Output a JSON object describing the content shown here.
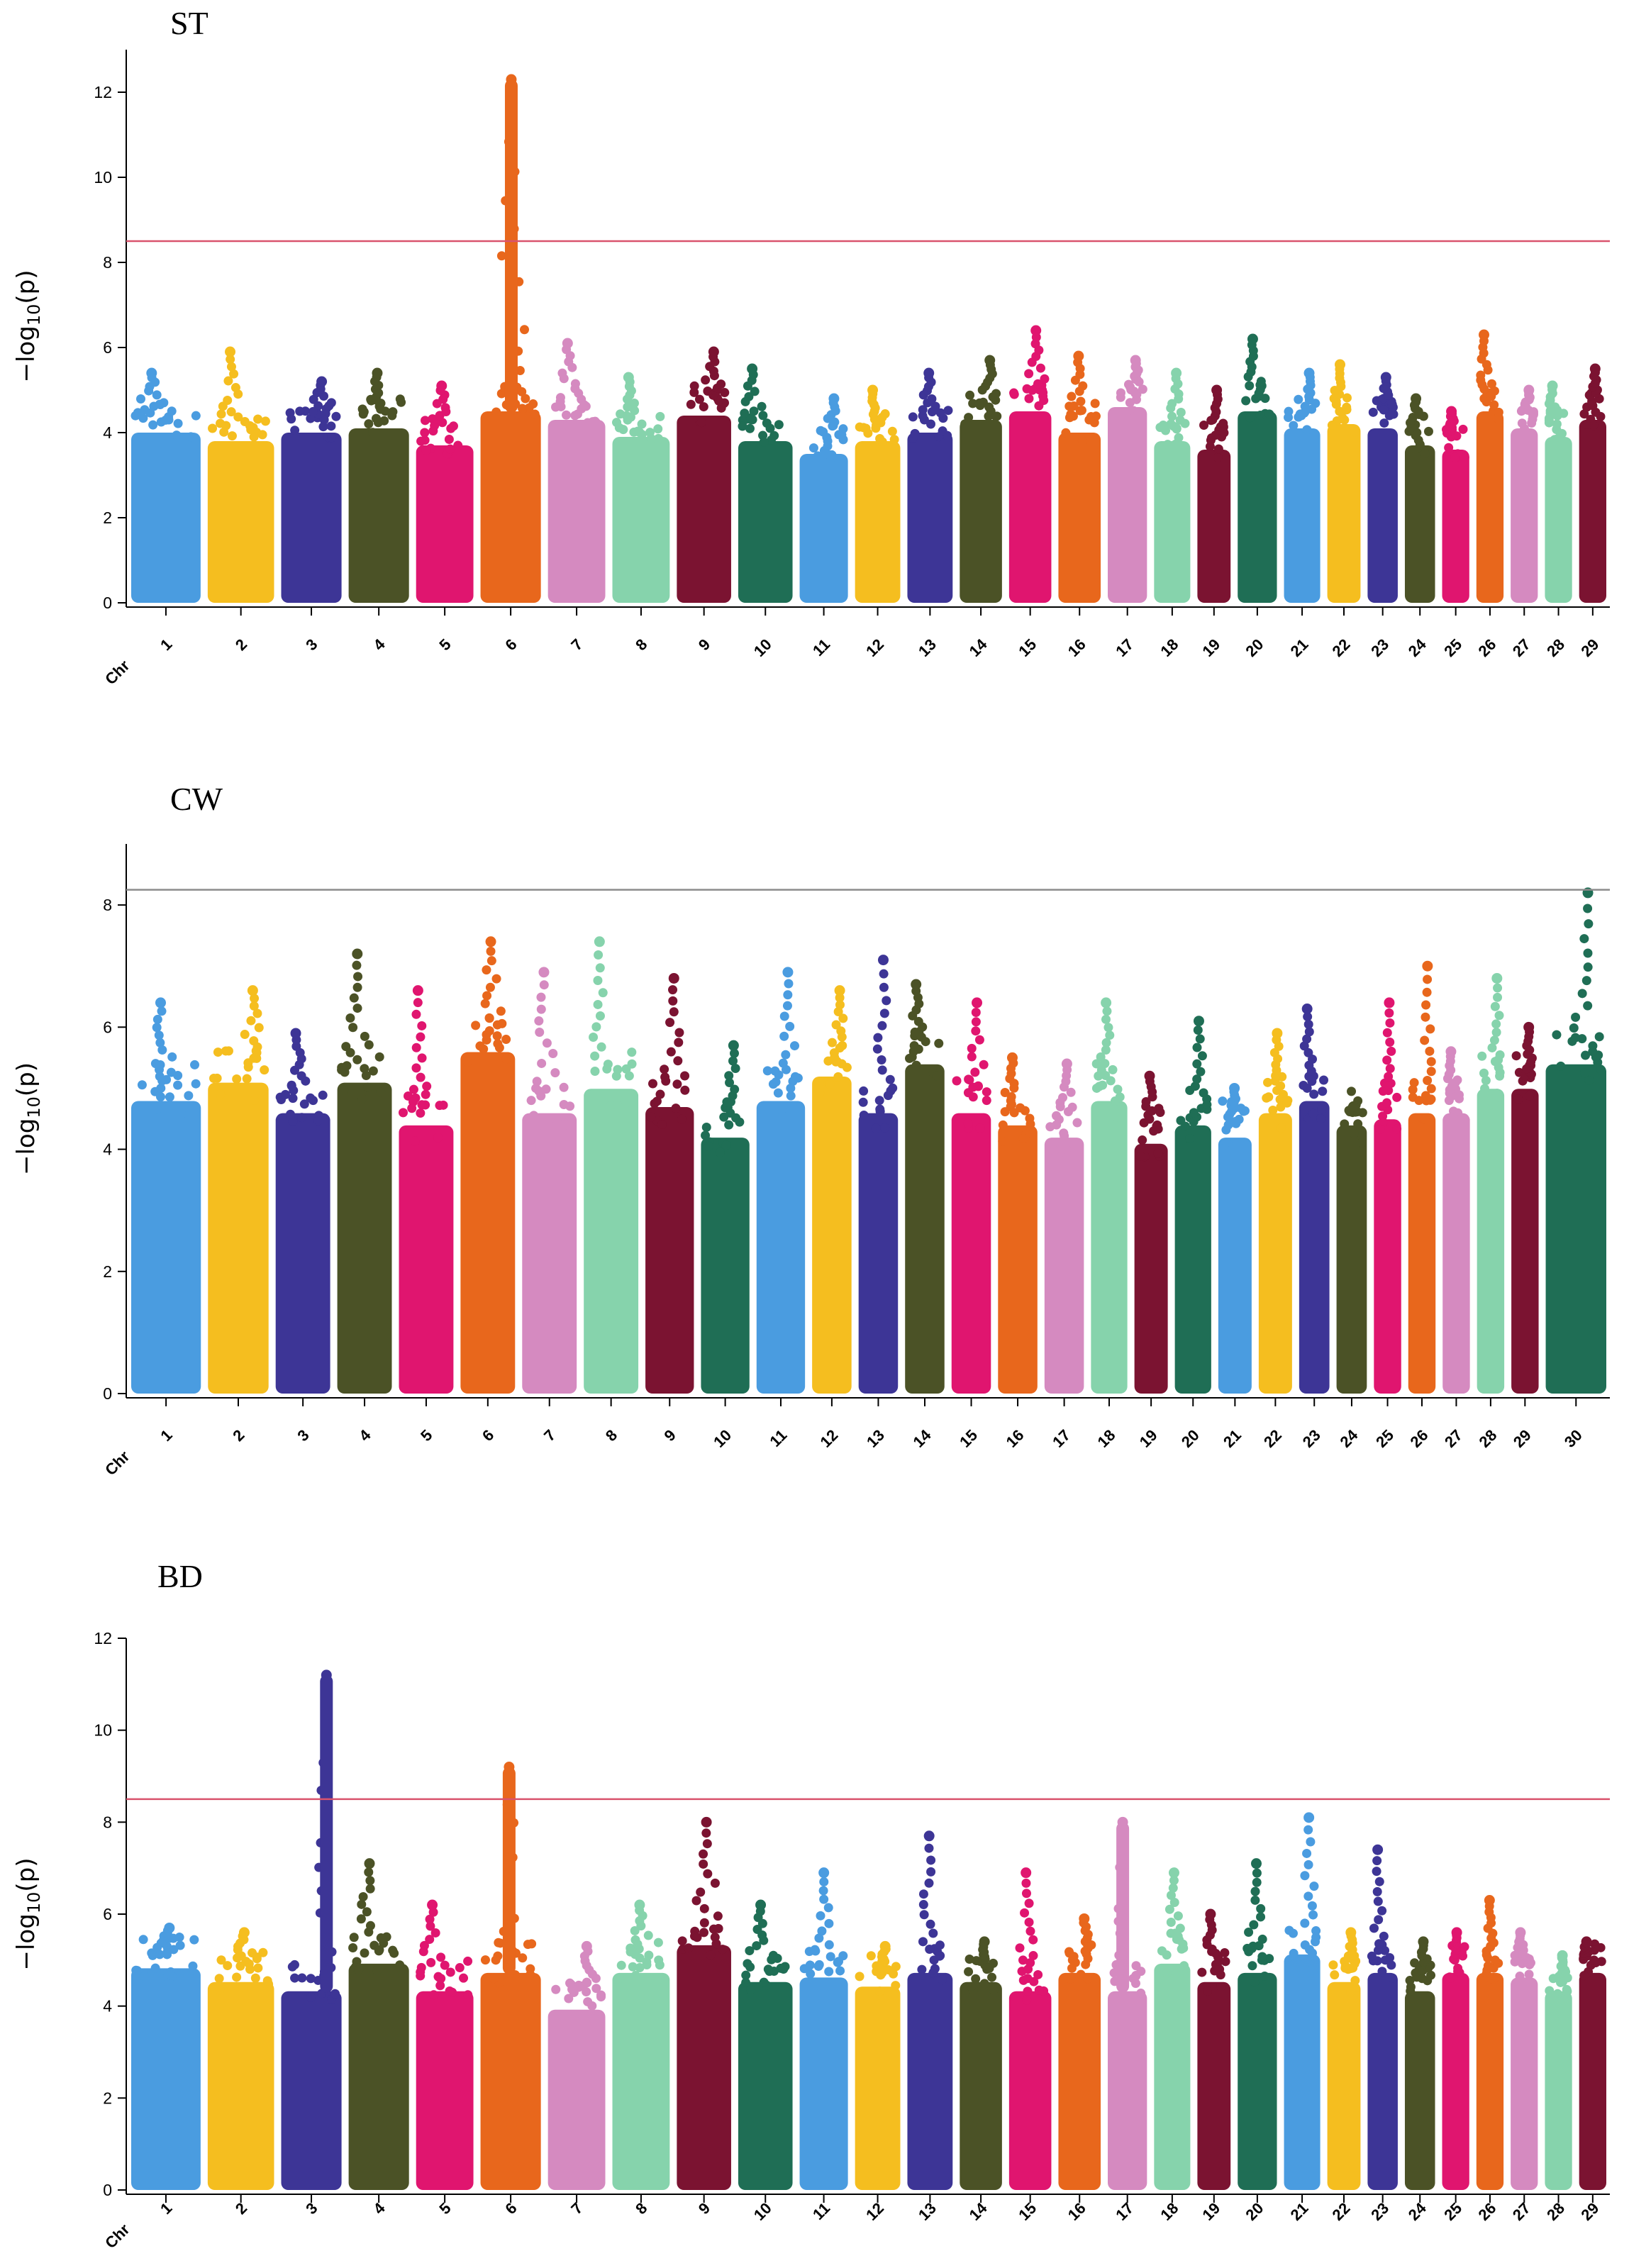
{
  "palette": [
    "#4a9ce0",
    "#f5be1f",
    "#3d3596",
    "#4b5226",
    "#e0156f",
    "#e8671c",
    "#d58ac0",
    "#86d3ac",
    "#7b1331",
    "#1f6e55"
  ],
  "chart_data": [
    {
      "type": "scatter",
      "title": "ST",
      "ylabel": "−log10(p)",
      "ylabel_main": "−log",
      "ylabel_sub": "10",
      "ylabel_rest": "(p)",
      "x_first_label": "Chr",
      "ylim": [
        0,
        13
      ],
      "yticks": [
        0,
        2,
        4,
        6,
        8,
        10,
        12
      ],
      "threshold": 8.5,
      "threshold_color": "#d9536d",
      "chromosomes": [
        "1",
        "2",
        "3",
        "4",
        "5",
        "6",
        "7",
        "8",
        "9",
        "10",
        "11",
        "12",
        "13",
        "14",
        "15",
        "16",
        "17",
        "18",
        "19",
        "20",
        "21",
        "22",
        "23",
        "24",
        "25",
        "26",
        "27",
        "28",
        "29"
      ],
      "rel_width": [
        2.3,
        2.2,
        2.0,
        2.0,
        1.9,
        2.0,
        1.9,
        1.9,
        1.8,
        1.8,
        1.6,
        1.5,
        1.5,
        1.4,
        1.4,
        1.4,
        1.3,
        1.2,
        1.1,
        1.3,
        1.2,
        1.1,
        1.0,
        1.0,
        0.9,
        0.9,
        0.9,
        0.9,
        0.9
      ],
      "peak_minuslog10p": [
        5.4,
        5.9,
        5.2,
        5.4,
        5.1,
        12.3,
        6.1,
        5.3,
        5.9,
        5.5,
        4.8,
        5.0,
        5.4,
        5.7,
        6.4,
        5.8,
        5.7,
        5.4,
        5.0,
        6.2,
        5.4,
        5.6,
        5.3,
        4.8,
        4.5,
        6.3,
        5.0,
        5.1,
        5.5
      ],
      "bulk_top": [
        4.3,
        4.1,
        4.3,
        4.4,
        4.0,
        4.8,
        4.6,
        4.2,
        4.7,
        4.1,
        3.8,
        4.1,
        4.3,
        4.6,
        4.8,
        4.3,
        4.9,
        4.1,
        3.9,
        4.8,
        4.4,
        4.5,
        4.4,
        4.0,
        3.9,
        4.8,
        4.4,
        4.2,
        4.6
      ]
    },
    {
      "type": "scatter",
      "title": "CW",
      "ylabel": "−log10(p)",
      "ylabel_main": "−log",
      "ylabel_sub": "10",
      "ylabel_rest": "(p)",
      "x_first_label": "Chr",
      "ylim": [
        0,
        9
      ],
      "yticks": [
        0,
        2,
        4,
        6,
        8
      ],
      "threshold": 8.25,
      "threshold_color": "#8c8c8c",
      "chromosomes": [
        "1",
        "2",
        "3",
        "4",
        "5",
        "6",
        "7",
        "8",
        "9",
        "10",
        "11",
        "12",
        "13",
        "14",
        "15",
        "16",
        "17",
        "18",
        "19",
        "20",
        "21",
        "22",
        "23",
        "24",
        "25",
        "26",
        "27",
        "28",
        "29",
        "30"
      ],
      "rel_width": [
        2.3,
        2.0,
        1.8,
        1.8,
        1.8,
        1.8,
        1.8,
        1.8,
        1.6,
        1.6,
        1.6,
        1.3,
        1.3,
        1.3,
        1.3,
        1.3,
        1.3,
        1.2,
        1.1,
        1.2,
        1.1,
        1.1,
        1.0,
        1.0,
        0.9,
        0.9,
        0.9,
        0.9,
        0.9,
        2.0
      ],
      "peak_minuslog10p": [
        6.4,
        6.6,
        5.9,
        7.2,
        6.6,
        7.4,
        6.9,
        7.4,
        6.8,
        5.7,
        6.9,
        6.6,
        7.1,
        6.7,
        6.4,
        5.5,
        5.4,
        6.4,
        5.2,
        6.1,
        5.0,
        5.9,
        6.3,
        4.7,
        6.4,
        7.0,
        5.6,
        6.8,
        6.0,
        8.2
      ],
      "bulk_top": [
        5.0,
        5.3,
        4.8,
        5.3,
        4.6,
        5.8,
        4.8,
        5.2,
        4.9,
        4.4,
        5.0,
        5.4,
        4.8,
        5.6,
        4.8,
        4.6,
        4.4,
        5.0,
        4.3,
        4.6,
        4.4,
        4.8,
        5.0,
        4.6,
        4.7,
        4.8,
        4.8,
        5.2,
        5.2,
        5.6
      ]
    },
    {
      "type": "scatter",
      "title": "BD",
      "ylabel": "−log10(p)",
      "ylabel_main": "−log",
      "ylabel_sub": "10",
      "ylabel_rest": "(p)",
      "x_first_label": "Chr",
      "ylim": [
        0,
        12
      ],
      "yticks": [
        0,
        2,
        4,
        6,
        8,
        10,
        12
      ],
      "threshold": 8.5,
      "threshold_color": "#d9536d",
      "chromosomes": [
        "1",
        "2",
        "3",
        "4",
        "5",
        "6",
        "7",
        "8",
        "9",
        "10",
        "11",
        "12",
        "13",
        "14",
        "15",
        "16",
        "17",
        "18",
        "19",
        "20",
        "21",
        "22",
        "23",
        "24",
        "25",
        "26",
        "27",
        "28",
        "29"
      ],
      "rel_width": [
        2.3,
        2.2,
        2.0,
        2.0,
        1.9,
        2.0,
        1.9,
        1.9,
        1.8,
        1.8,
        1.6,
        1.5,
        1.5,
        1.4,
        1.4,
        1.4,
        1.3,
        1.2,
        1.1,
        1.3,
        1.2,
        1.1,
        1.0,
        1.0,
        0.9,
        0.9,
        0.9,
        0.9,
        0.9
      ],
      "peak_minuslog10p": [
        5.7,
        5.6,
        11.2,
        7.1,
        6.2,
        9.2,
        5.3,
        6.2,
        8.0,
        6.2,
        6.9,
        5.3,
        7.7,
        5.4,
        6.9,
        5.9,
        8.0,
        6.9,
        6.0,
        7.1,
        8.1,
        5.6,
        7.4,
        5.4,
        5.6,
        6.3,
        5.6,
        5.1,
        5.4
      ],
      "bulk_top": [
        5.1,
        4.8,
        4.6,
        5.2,
        4.6,
        5.0,
        4.2,
        5.0,
        5.6,
        4.8,
        4.9,
        4.7,
        5.0,
        4.8,
        4.6,
        5.0,
        4.6,
        5.2,
        4.8,
        5.0,
        5.4,
        4.8,
        5.0,
        4.6,
        5.0,
        5.0,
        4.9,
        4.6,
        5.0
      ]
    }
  ]
}
